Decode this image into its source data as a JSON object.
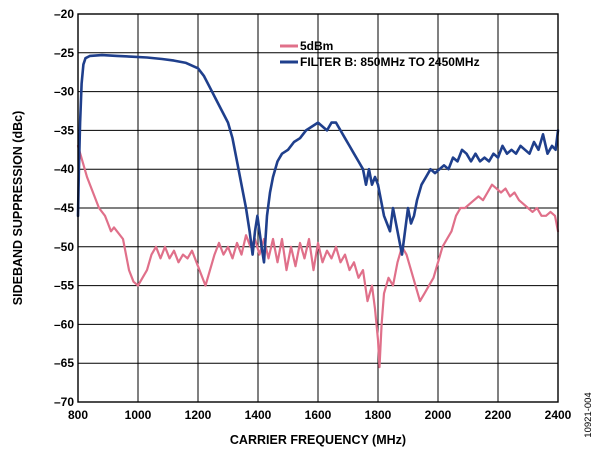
{
  "chart_data": {
    "type": "line",
    "xlabel": "CARRIER FREQUENCY (MHz)",
    "ylabel": "SIDEBAND SUPPRESSION (dBc)",
    "xlim": [
      800,
      2400
    ],
    "ylim": [
      -70,
      -20
    ],
    "xticks": [
      800,
      1000,
      1200,
      1400,
      1600,
      1800,
      2000,
      2200,
      2400
    ],
    "yticks": [
      -20,
      -25,
      -30,
      -35,
      -40,
      -45,
      -50,
      -55,
      -60,
      -65,
      -70
    ],
    "xtick_labels": [
      "800",
      "1000",
      "1200",
      "1400",
      "1600",
      "1800",
      "2000",
      "2200",
      "2400"
    ],
    "ytick_labels": [
      "–20",
      "–25",
      "–30",
      "–35",
      "–40",
      "–45",
      "–50",
      "–55",
      "–60",
      "–65",
      "–70"
    ],
    "grid": true,
    "legend_position": "top-right",
    "figure_id": "10921-004",
    "series": [
      {
        "name": "5dBm",
        "color": "#e0708a",
        "points": [
          [
            800,
            -37
          ],
          [
            815,
            -39
          ],
          [
            830,
            -41
          ],
          [
            850,
            -43
          ],
          [
            870,
            -45
          ],
          [
            890,
            -46
          ],
          [
            900,
            -47
          ],
          [
            910,
            -48
          ],
          [
            920,
            -47.5
          ],
          [
            930,
            -48
          ],
          [
            950,
            -49
          ],
          [
            960,
            -51
          ],
          [
            970,
            -53
          ],
          [
            985,
            -54.5
          ],
          [
            1000,
            -55
          ],
          [
            1015,
            -54
          ],
          [
            1030,
            -53
          ],
          [
            1045,
            -51
          ],
          [
            1060,
            -50
          ],
          [
            1075,
            -51.5
          ],
          [
            1090,
            -50
          ],
          [
            1105,
            -51.5
          ],
          [
            1120,
            -50.5
          ],
          [
            1135,
            -52
          ],
          [
            1150,
            -51
          ],
          [
            1165,
            -51.5
          ],
          [
            1180,
            -50.5
          ],
          [
            1195,
            -52
          ],
          [
            1210,
            -53.5
          ],
          [
            1225,
            -55
          ],
          [
            1240,
            -53
          ],
          [
            1255,
            -51
          ],
          [
            1270,
            -49.5
          ],
          [
            1285,
            -51
          ],
          [
            1300,
            -50
          ],
          [
            1315,
            -51.5
          ],
          [
            1330,
            -49.5
          ],
          [
            1345,
            -51
          ],
          [
            1360,
            -48.5
          ],
          [
            1375,
            -50
          ],
          [
            1390,
            -49
          ],
          [
            1405,
            -51
          ],
          [
            1420,
            -49
          ],
          [
            1435,
            -51.5
          ],
          [
            1450,
            -49
          ],
          [
            1465,
            -52
          ],
          [
            1480,
            -49
          ],
          [
            1495,
            -53
          ],
          [
            1510,
            -50
          ],
          [
            1525,
            -52.5
          ],
          [
            1540,
            -49.5
          ],
          [
            1555,
            -51.5
          ],
          [
            1570,
            -49
          ],
          [
            1585,
            -53
          ],
          [
            1600,
            -49.5
          ],
          [
            1615,
            -52
          ],
          [
            1630,
            -50.5
          ],
          [
            1645,
            -51.5
          ],
          [
            1660,
            -50
          ],
          [
            1675,
            -52
          ],
          [
            1690,
            -51
          ],
          [
            1705,
            -53
          ],
          [
            1720,
            -52
          ],
          [
            1735,
            -54
          ],
          [
            1750,
            -53
          ],
          [
            1765,
            -57
          ],
          [
            1780,
            -55
          ],
          [
            1790,
            -58
          ],
          [
            1800,
            -62
          ],
          [
            1805,
            -65.5
          ],
          [
            1812,
            -60
          ],
          [
            1820,
            -56
          ],
          [
            1835,
            -54
          ],
          [
            1850,
            -55
          ],
          [
            1865,
            -52
          ],
          [
            1880,
            -50
          ],
          [
            1895,
            -51
          ],
          [
            1910,
            -53
          ],
          [
            1925,
            -55
          ],
          [
            1940,
            -57
          ],
          [
            1955,
            -56
          ],
          [
            1970,
            -55
          ],
          [
            1985,
            -54
          ],
          [
            2000,
            -52
          ],
          [
            2015,
            -50
          ],
          [
            2030,
            -49
          ],
          [
            2045,
            -48
          ],
          [
            2060,
            -46
          ],
          [
            2075,
            -45
          ],
          [
            2090,
            -45
          ],
          [
            2105,
            -44.5
          ],
          [
            2120,
            -44
          ],
          [
            2135,
            -43.5
          ],
          [
            2150,
            -44
          ],
          [
            2165,
            -43
          ],
          [
            2180,
            -42
          ],
          [
            2195,
            -42.5
          ],
          [
            2210,
            -43
          ],
          [
            2225,
            -42.5
          ],
          [
            2240,
            -43.5
          ],
          [
            2255,
            -43
          ],
          [
            2270,
            -44
          ],
          [
            2285,
            -44.5
          ],
          [
            2300,
            -45
          ],
          [
            2315,
            -45.5
          ],
          [
            2330,
            -45
          ],
          [
            2345,
            -46
          ],
          [
            2360,
            -46
          ],
          [
            2375,
            -45.5
          ],
          [
            2390,
            -46
          ],
          [
            2400,
            -48
          ]
        ]
      },
      {
        "name": "FILTER B: 850MHz TO 2450MHz",
        "color": "#1f3f8c",
        "points": [
          [
            800,
            -46
          ],
          [
            803,
            -40
          ],
          [
            807,
            -34
          ],
          [
            812,
            -29
          ],
          [
            818,
            -26.5
          ],
          [
            825,
            -25.7
          ],
          [
            840,
            -25.4
          ],
          [
            880,
            -25.3
          ],
          [
            930,
            -25.4
          ],
          [
            980,
            -25.5
          ],
          [
            1030,
            -25.6
          ],
          [
            1080,
            -25.8
          ],
          [
            1120,
            -26.0
          ],
          [
            1160,
            -26.3
          ],
          [
            1200,
            -27.0
          ],
          [
            1220,
            -28.0
          ],
          [
            1240,
            -29.5
          ],
          [
            1260,
            -31
          ],
          [
            1280,
            -32.5
          ],
          [
            1300,
            -34
          ],
          [
            1315,
            -36
          ],
          [
            1330,
            -39
          ],
          [
            1345,
            -42
          ],
          [
            1360,
            -45
          ],
          [
            1372,
            -48
          ],
          [
            1382,
            -51
          ],
          [
            1390,
            -48
          ],
          [
            1398,
            -46
          ],
          [
            1405,
            -48
          ],
          [
            1412,
            -50
          ],
          [
            1420,
            -52
          ],
          [
            1430,
            -46
          ],
          [
            1440,
            -43
          ],
          [
            1450,
            -41
          ],
          [
            1465,
            -39
          ],
          [
            1480,
            -38
          ],
          [
            1500,
            -37.5
          ],
          [
            1520,
            -36.5
          ],
          [
            1540,
            -36
          ],
          [
            1560,
            -35
          ],
          [
            1580,
            -34.5
          ],
          [
            1600,
            -34
          ],
          [
            1615,
            -34.5
          ],
          [
            1630,
            -35
          ],
          [
            1645,
            -34
          ],
          [
            1660,
            -34
          ],
          [
            1675,
            -35
          ],
          [
            1690,
            -36
          ],
          [
            1705,
            -37
          ],
          [
            1720,
            -38
          ],
          [
            1735,
            -39
          ],
          [
            1750,
            -40
          ],
          [
            1760,
            -42
          ],
          [
            1770,
            -40
          ],
          [
            1780,
            -42
          ],
          [
            1790,
            -41
          ],
          [
            1800,
            -42
          ],
          [
            1810,
            -44
          ],
          [
            1820,
            -46
          ],
          [
            1830,
            -47
          ],
          [
            1840,
            -48
          ],
          [
            1850,
            -45
          ],
          [
            1860,
            -47
          ],
          [
            1870,
            -49
          ],
          [
            1880,
            -51
          ],
          [
            1890,
            -48
          ],
          [
            1900,
            -45
          ],
          [
            1910,
            -47
          ],
          [
            1920,
            -46
          ],
          [
            1930,
            -44
          ],
          [
            1945,
            -42
          ],
          [
            1960,
            -41
          ],
          [
            1975,
            -40
          ],
          [
            1990,
            -40.5
          ],
          [
            2005,
            -40
          ],
          [
            2020,
            -39.5
          ],
          [
            2035,
            -40
          ],
          [
            2050,
            -38.5
          ],
          [
            2065,
            -39
          ],
          [
            2080,
            -37.5
          ],
          [
            2095,
            -38
          ],
          [
            2110,
            -39
          ],
          [
            2125,
            -38
          ],
          [
            2140,
            -39
          ],
          [
            2155,
            -38.5
          ],
          [
            2170,
            -39
          ],
          [
            2185,
            -38
          ],
          [
            2200,
            -38.5
          ],
          [
            2215,
            -37
          ],
          [
            2230,
            -38
          ],
          [
            2245,
            -37.5
          ],
          [
            2260,
            -38
          ],
          [
            2275,
            -37
          ],
          [
            2290,
            -37.5
          ],
          [
            2305,
            -38
          ],
          [
            2320,
            -36.5
          ],
          [
            2335,
            -37.5
          ],
          [
            2350,
            -35.5
          ],
          [
            2365,
            -38
          ],
          [
            2380,
            -37
          ],
          [
            2392,
            -37.5
          ],
          [
            2400,
            -35
          ]
        ]
      }
    ]
  }
}
